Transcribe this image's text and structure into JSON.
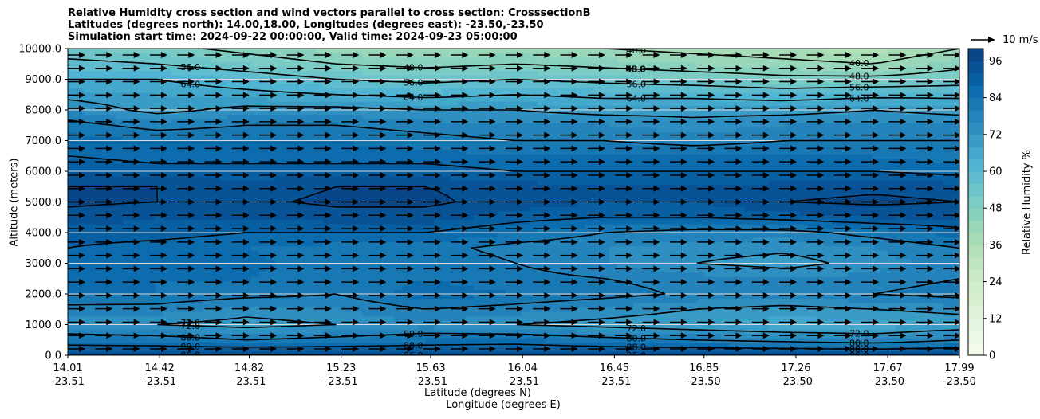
{
  "chart_data": {
    "type": "heatmap",
    "title": [
      "Relative Humidity cross section and wind vectors parallel to cross section: CrosssectionB",
      "Latitudes (degrees north): 14.00,18.00, Longitudes (degrees east): -23.50,-23.50",
      "Simulation start time: 2024-09-22 00:00:00, Valid time: 2024-09-23 05:00:00"
    ],
    "ylabel": "Altitude (meters)",
    "xlabel": "Latitude (degrees N)",
    "xlabel2": "Longitude (degrees E)",
    "ylim": [
      0,
      10000
    ],
    "yticks": [
      "0.0",
      "1000.0",
      "2000.0",
      "3000.0",
      "4000.0",
      "5000.0",
      "6000.0",
      "7000.0",
      "8000.0",
      "9000.0",
      "10000.0"
    ],
    "ytick_values": [
      0,
      1000,
      2000,
      3000,
      4000,
      5000,
      6000,
      7000,
      8000,
      9000,
      10000
    ],
    "xticks": [
      {
        "lat": "14.01",
        "lon": "-23.51"
      },
      {
        "lat": "14.42",
        "lon": "-23.51"
      },
      {
        "lat": "14.82",
        "lon": "-23.51"
      },
      {
        "lat": "15.23",
        "lon": "-23.51"
      },
      {
        "lat": "15.63",
        "lon": "-23.51"
      },
      {
        "lat": "16.04",
        "lon": "-23.51"
      },
      {
        "lat": "16.45",
        "lon": "-23.51"
      },
      {
        "lat": "16.85",
        "lon": "-23.50"
      },
      {
        "lat": "17.26",
        "lon": "-23.50"
      },
      {
        "lat": "17.67",
        "lon": "-23.50"
      },
      {
        "lat": "17.99",
        "lon": "-23.50"
      }
    ],
    "xtick_values": [
      14.01,
      14.42,
      14.82,
      15.23,
      15.63,
      16.04,
      16.45,
      16.85,
      17.26,
      17.67,
      17.99
    ],
    "xlim": [
      14.01,
      17.99
    ],
    "grid": "horizontal",
    "colorbar": {
      "label": "Relative Humidity %",
      "ticks": [
        "0",
        "12",
        "24",
        "36",
        "48",
        "60",
        "72",
        "84",
        "96"
      ],
      "range": [
        0,
        100
      ],
      "step": 4,
      "colormap": "GnBu"
    },
    "contour_levels": [
      40.0,
      48.0,
      56.0,
      64.0,
      72.0,
      80.0,
      88.0,
      96.0
    ],
    "contour_labels": [
      "40.0",
      "48.0",
      "56.0",
      "64.0",
      "72.0",
      "80.0",
      "88.0",
      "96.0"
    ],
    "altitudes": [
      0,
      500,
      1000,
      1500,
      2000,
      2500,
      3000,
      3500,
      4000,
      4500,
      5000,
      5500,
      6000,
      6500,
      7000,
      7500,
      8000,
      8500,
      9000,
      9500,
      10000
    ],
    "latitudes": [
      14.01,
      14.41,
      14.81,
      15.21,
      15.61,
      16.01,
      16.41,
      16.81,
      17.21,
      17.61,
      17.99
    ],
    "rh": [
      [
        96,
        96,
        97,
        96,
        96,
        96,
        96,
        96,
        96,
        96,
        96
      ],
      [
        84,
        83,
        80,
        82,
        84,
        85,
        82,
        80,
        78,
        76,
        80
      ],
      [
        74,
        72,
        70,
        72,
        75,
        72,
        70,
        68,
        66,
        66,
        68
      ],
      [
        78,
        78,
        74,
        76,
        80,
        78,
        75,
        72,
        70,
        72,
        74
      ],
      [
        85,
        84,
        82,
        80,
        86,
        84,
        82,
        79,
        78,
        80,
        82
      ],
      [
        86,
        84,
        84,
        82,
        84,
        82,
        80,
        78,
        76,
        78,
        80
      ],
      [
        86,
        84,
        85,
        82,
        84,
        80,
        76,
        72,
        70,
        74,
        78
      ],
      [
        88,
        86,
        84,
        82,
        82,
        78,
        76,
        74,
        73,
        76,
        80
      ],
      [
        90,
        90,
        88,
        88,
        88,
        84,
        80,
        78,
        78,
        82,
        86
      ],
      [
        94,
        92,
        92,
        94,
        94,
        90,
        88,
        88,
        90,
        92,
        92
      ],
      [
        97,
        96,
        95,
        97,
        97,
        94,
        92,
        92,
        96,
        97,
        96
      ],
      [
        96,
        96,
        94,
        96,
        96,
        94,
        92,
        92,
        94,
        95,
        94
      ],
      [
        92,
        90,
        90,
        90,
        90,
        88,
        88,
        88,
        88,
        88,
        86
      ],
      [
        88,
        86,
        86,
        86,
        86,
        84,
        84,
        84,
        84,
        84,
        82
      ],
      [
        86,
        84,
        84,
        84,
        82,
        80,
        80,
        78,
        80,
        80,
        80
      ],
      [
        82,
        78,
        80,
        80,
        78,
        76,
        76,
        74,
        76,
        76,
        76
      ],
      [
        76,
        70,
        74,
        74,
        72,
        72,
        70,
        70,
        70,
        72,
        70
      ],
      [
        70,
        68,
        66,
        64,
        62,
        64,
        62,
        62,
        60,
        62,
        62
      ],
      [
        64,
        64,
        60,
        56,
        54,
        56,
        54,
        52,
        50,
        50,
        52
      ],
      [
        58,
        56,
        52,
        48,
        46,
        48,
        46,
        44,
        42,
        40,
        46
      ],
      [
        52,
        50,
        46,
        42,
        40,
        42,
        40,
        38,
        36,
        34,
        40
      ]
    ],
    "wind": {
      "direction": "east",
      "key_label": "10 m/s",
      "vector_rows": 23,
      "vector_columns": 33
    }
  }
}
